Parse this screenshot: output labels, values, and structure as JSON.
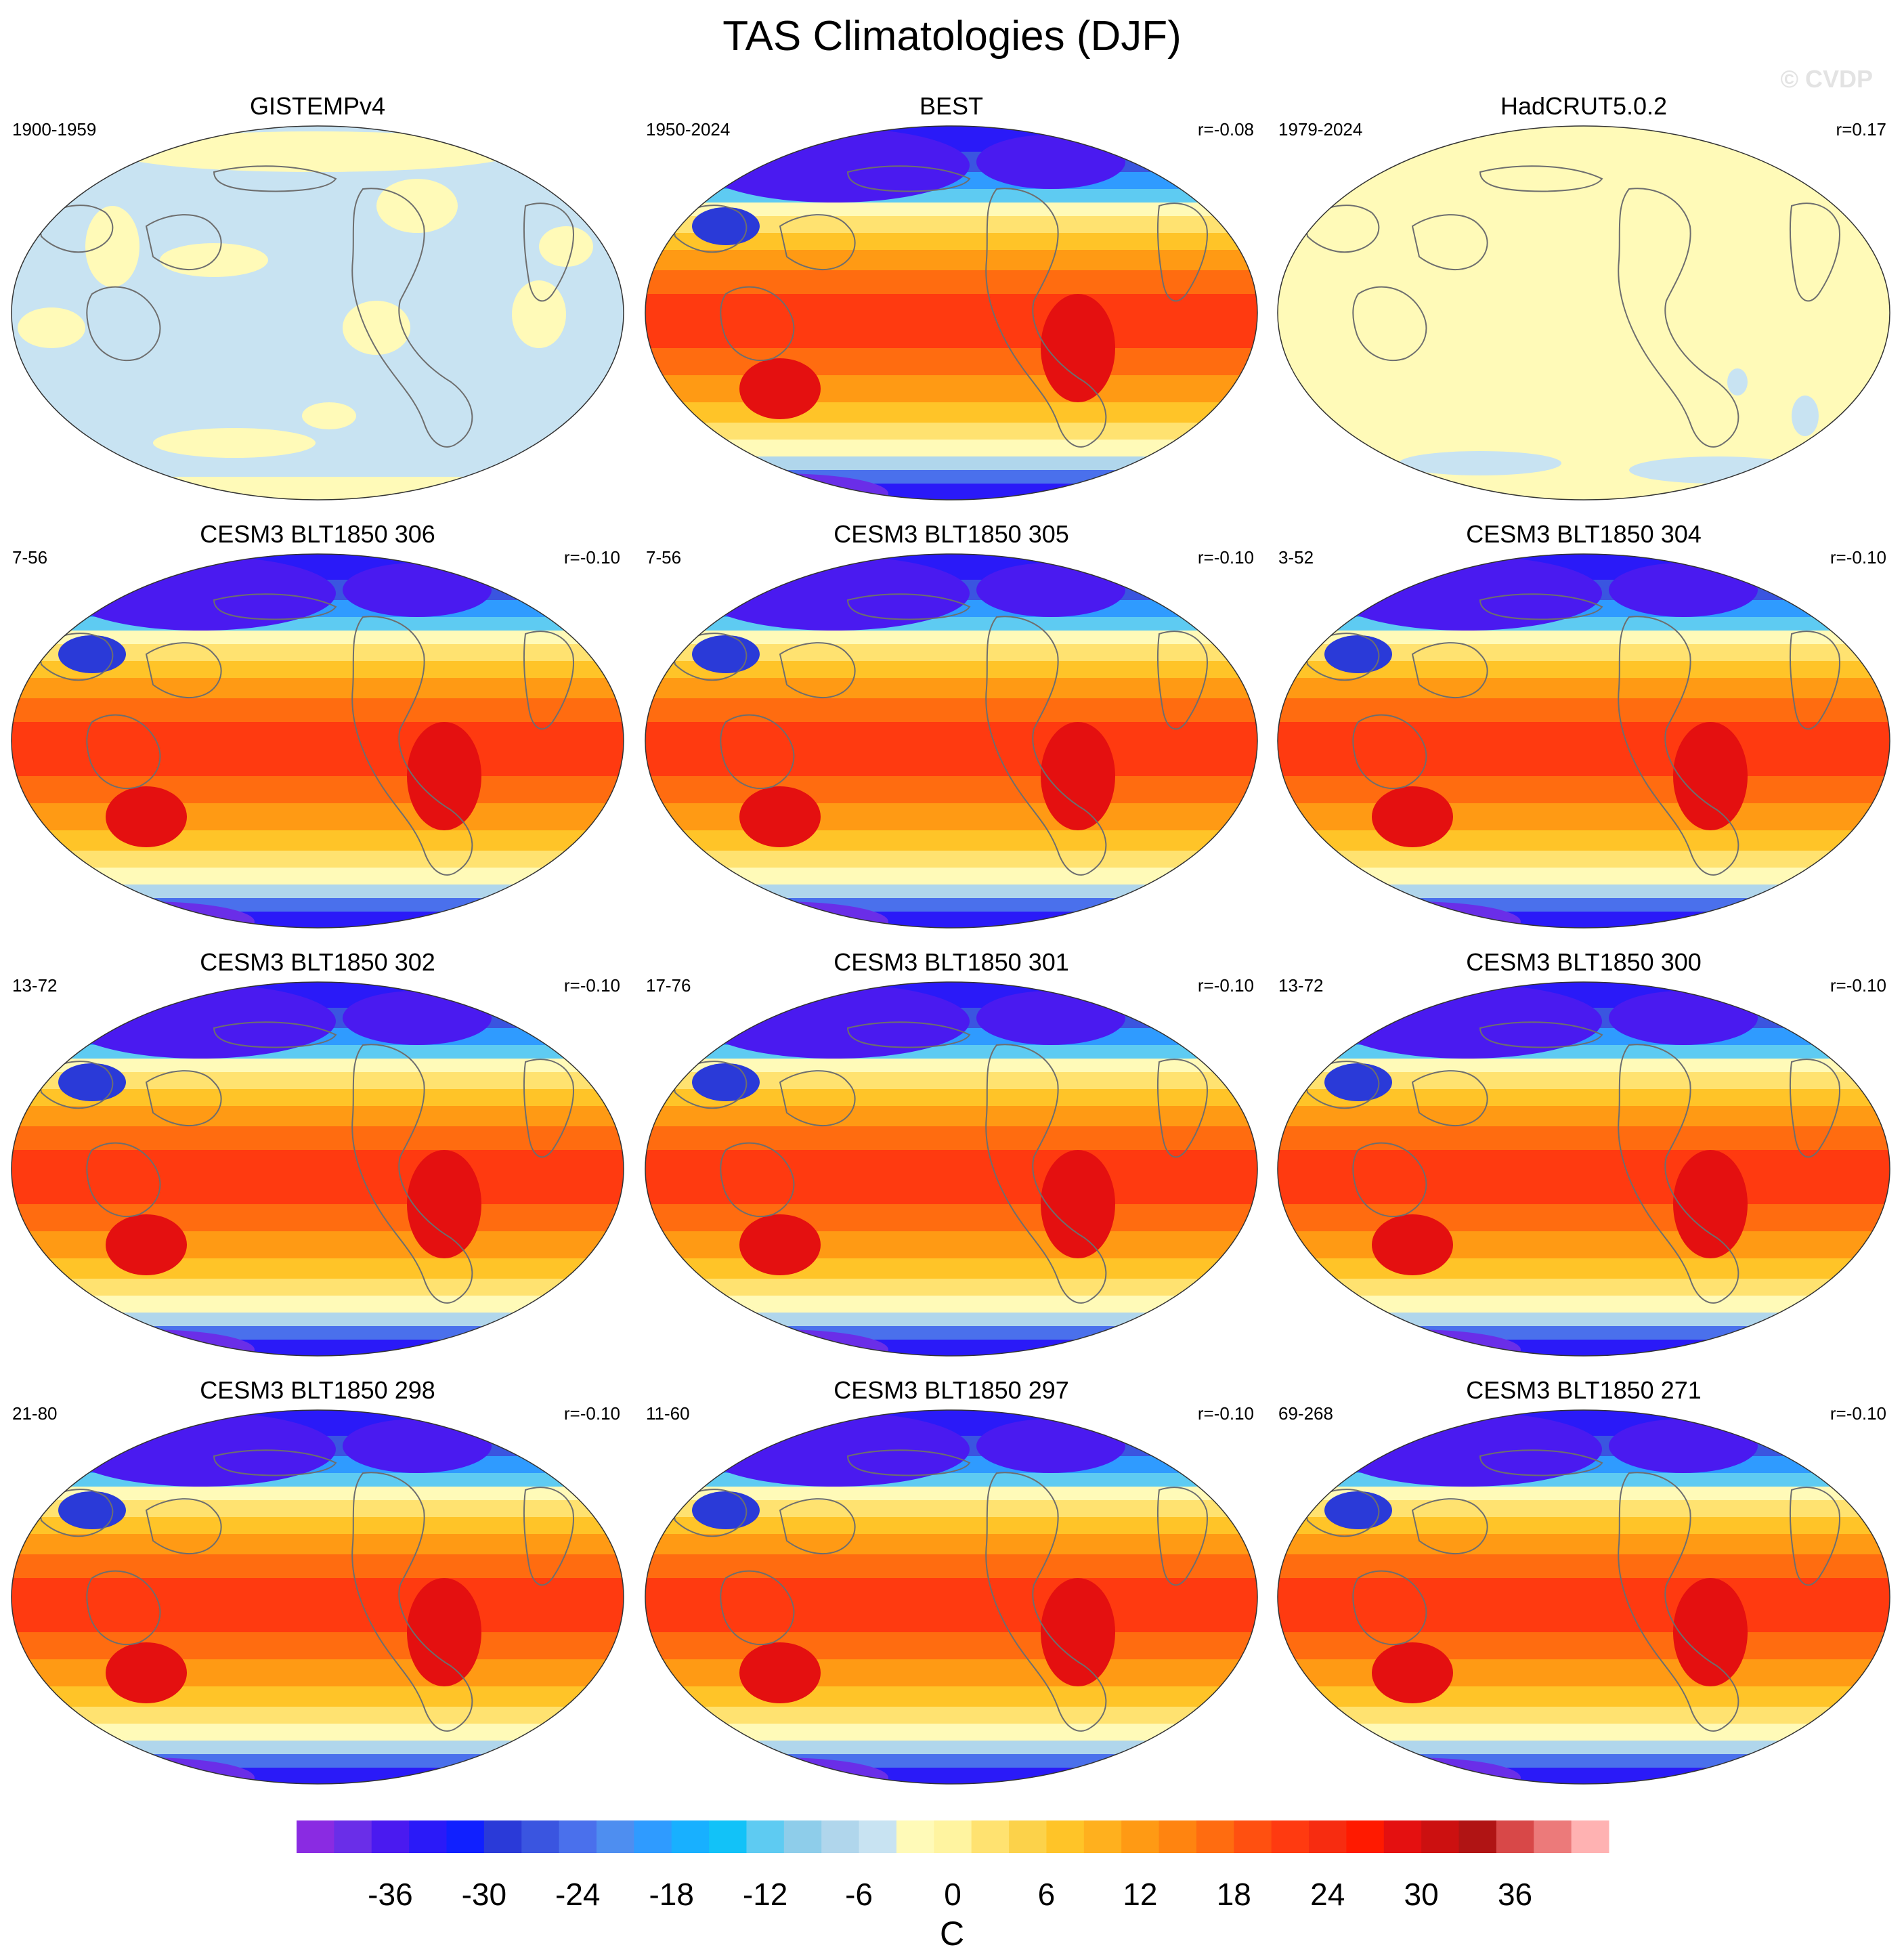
{
  "title": "TAS Climatologies (DJF)",
  "watermark": "© CVDP",
  "panels": [
    {
      "title": "GISTEMPv4",
      "years": "1900-1959",
      "corr": "",
      "pattern": "obs-pale"
    },
    {
      "title": "BEST",
      "years": "1950-2024",
      "corr": "r=-0.08",
      "pattern": "full"
    },
    {
      "title": "HadCRUT5.0.2",
      "years": "1979-2024",
      "corr": "r=0.17",
      "pattern": "obs-yellow"
    },
    {
      "title": "CESM3 BLT1850 306",
      "years": "7-56",
      "corr": "r=-0.10",
      "pattern": "full"
    },
    {
      "title": "CESM3 BLT1850 305",
      "years": "7-56",
      "corr": "r=-0.10",
      "pattern": "full"
    },
    {
      "title": "CESM3 BLT1850 304",
      "years": "3-52",
      "corr": "r=-0.10",
      "pattern": "full"
    },
    {
      "title": "CESM3 BLT1850 302",
      "years": "13-72",
      "corr": "r=-0.10",
      "pattern": "full"
    },
    {
      "title": "CESM3 BLT1850 301",
      "years": "17-76",
      "corr": "r=-0.10",
      "pattern": "full"
    },
    {
      "title": "CESM3 BLT1850 300",
      "years": "13-72",
      "corr": "r=-0.10",
      "pattern": "full"
    },
    {
      "title": "CESM3 BLT1850 298",
      "years": "21-80",
      "corr": "r=-0.10",
      "pattern": "full"
    },
    {
      "title": "CESM3 BLT1850 297",
      "years": "11-60",
      "corr": "r=-0.10",
      "pattern": "full"
    },
    {
      "title": "CESM3 BLT1850 271",
      "years": "69-268",
      "corr": "r=-0.10",
      "pattern": "full"
    }
  ],
  "colorbar": {
    "units": "C",
    "tick_labels": [
      "-36",
      "-30",
      "-24",
      "-18",
      "-12",
      "-6",
      "0",
      "6",
      "12",
      "18",
      "24",
      "30",
      "36"
    ],
    "tick_values": [
      -36,
      -30,
      -24,
      -18,
      -12,
      -6,
      0,
      6,
      12,
      18,
      24,
      30,
      36
    ],
    "range": [
      -42,
      42
    ],
    "step": 3,
    "colors": [
      "#8a2be2",
      "#6a2ee8",
      "#4a1af0",
      "#2a1af8",
      "#1020ff",
      "#2a3ad8",
      "#3a55e0",
      "#4a70ec",
      "#4e8ef0",
      "#2f9bff",
      "#18b0ff",
      "#12c2f8",
      "#5ecbf2",
      "#8ecdea",
      "#b0d6ec",
      "#c8e3f2",
      "#fffab8",
      "#fff4a0",
      "#ffe270",
      "#fcd24a",
      "#ffc428",
      "#ffb01e",
      "#ff9a14",
      "#ff8410",
      "#ff6c10",
      "#ff5010",
      "#ff3a10",
      "#f72c10",
      "#ff1a00",
      "#e41010",
      "#cc1010",
      "#b01414",
      "#d84848",
      "#ec7a7a",
      "#ffb2b2"
    ]
  }
}
